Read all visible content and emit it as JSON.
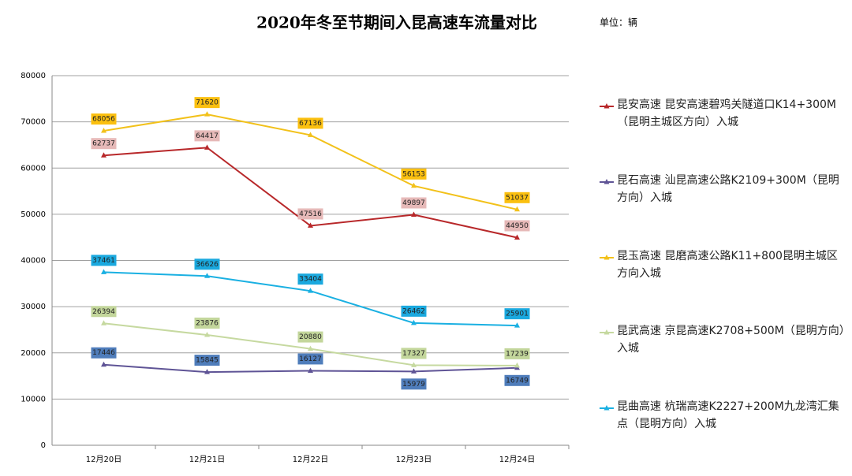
{
  "chart_data": {
    "type": "line",
    "title": "2020年冬至节期间入昆高速车流量对比",
    "unit": "单位：辆",
    "categories": [
      "12月20日",
      "12月21日",
      "12月22日",
      "12月23日",
      "12月24日"
    ],
    "series": [
      {
        "name": "昆安高速 昆安高速碧鸡关隧道口K14+300M（昆明主城区方向）入城",
        "color": "#b8282a",
        "label_bg": "#e6b9b8",
        "values": [
          62737,
          64417,
          47516,
          49897,
          44950
        ]
      },
      {
        "name": "昆石高速 汕昆高速公路K2109+300M（昆明方向）入城",
        "color": "#5f5496",
        "label_bg": "#4f7dbb",
        "values": [
          17446,
          15845,
          16127,
          15979,
          16749
        ]
      },
      {
        "name": "昆玉高速 昆磨高速公路K11+800昆明主城区方向入城",
        "color": "#f2c11a",
        "label_bg": "#fbc010",
        "values": [
          68056,
          71620,
          67136,
          56153,
          51037
        ]
      },
      {
        "name": "昆武高速 京昆高速K2708+500M（昆明方向）入城",
        "color": "#c6d9a0",
        "label_bg": "#c3d69b",
        "values": [
          26394,
          23876,
          20880,
          17327,
          17239
        ]
      },
      {
        "name": "昆曲高速 杭瑞高速K2227+200M九龙湾汇集点（昆明方向）入城",
        "color": "#1ab0e2",
        "label_bg": "#1aa9df",
        "values": [
          37461,
          36626,
          33404,
          26462,
          25901
        ]
      }
    ],
    "ylim": [
      0,
      80000
    ],
    "yticks": [
      0,
      10000,
      20000,
      30000,
      40000,
      50000,
      60000,
      70000,
      80000
    ],
    "grid": true
  }
}
